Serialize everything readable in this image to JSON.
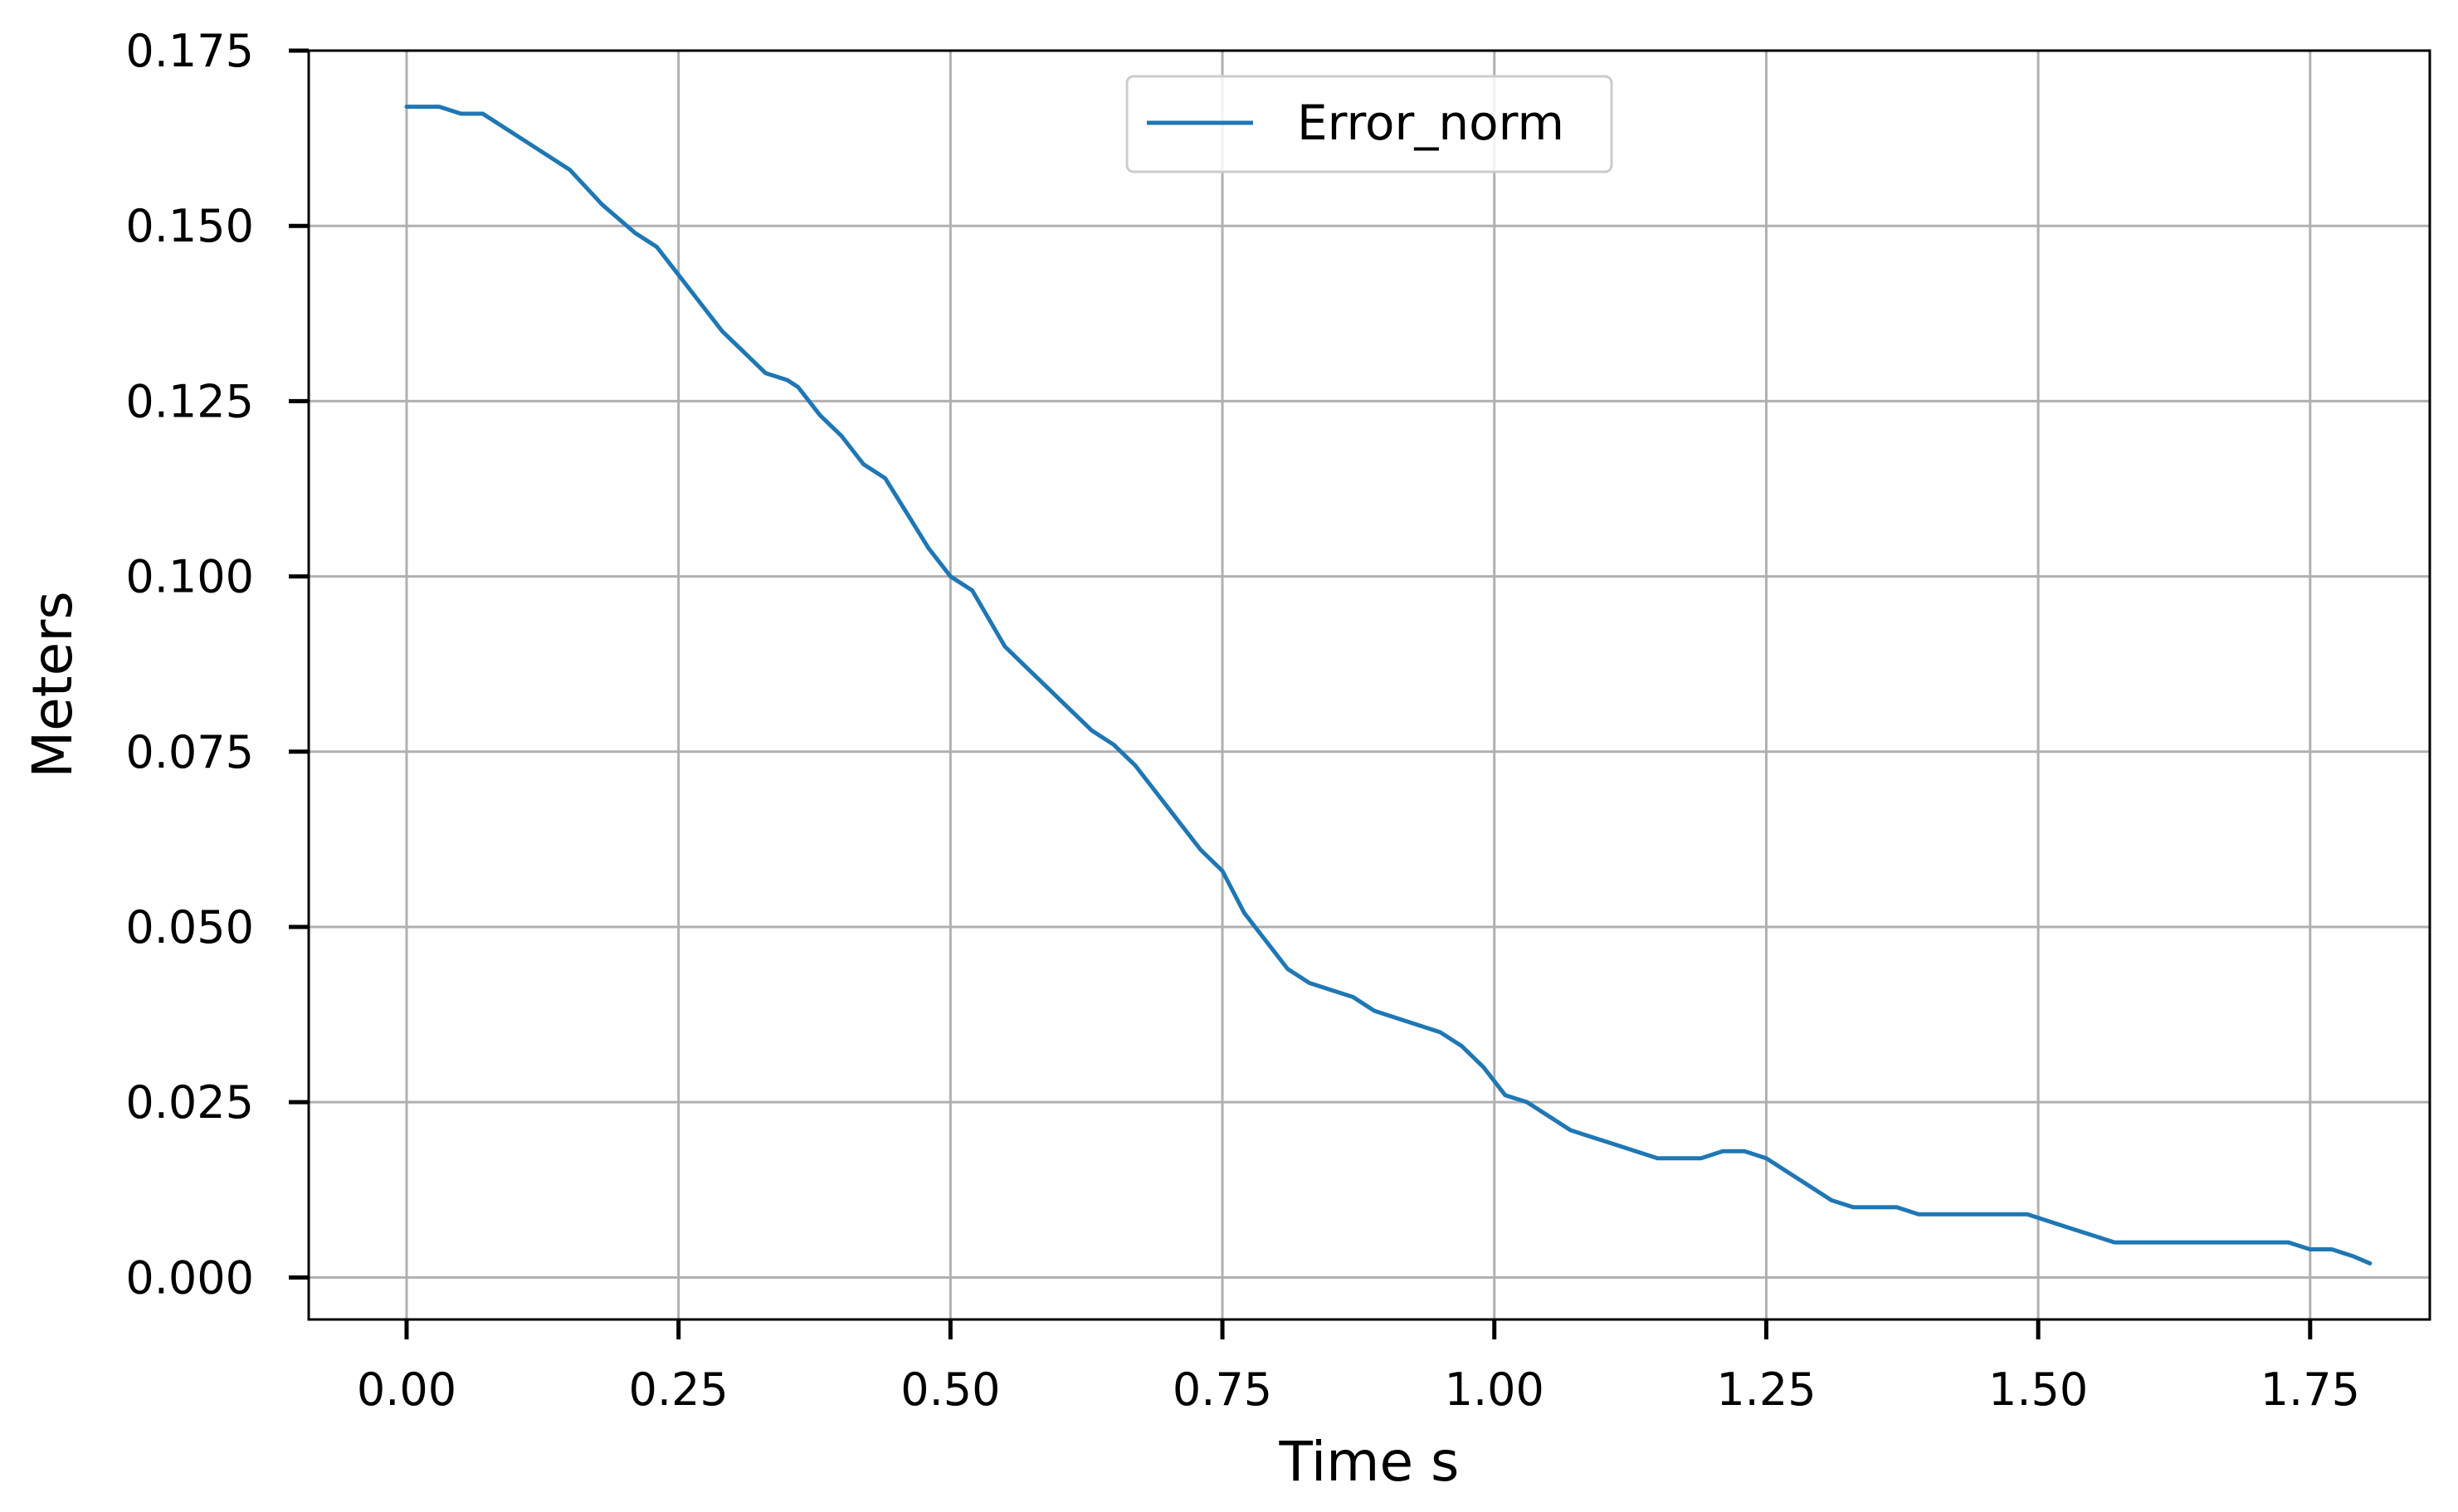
{
  "chart_data": {
    "type": "line",
    "title": "",
    "xlabel": "Time s",
    "ylabel": "Meters",
    "xlim": [
      -0.09,
      1.86
    ],
    "ylim": [
      -0.006,
      0.175
    ],
    "grid": true,
    "legend_position": "top-center",
    "x_ticks": [
      0.0,
      0.25,
      0.5,
      0.75,
      1.0,
      1.25,
      1.5,
      1.75
    ],
    "x_tick_labels": [
      "0.00",
      "0.25",
      "0.50",
      "0.75",
      "1.00",
      "1.25",
      "1.50",
      "1.75"
    ],
    "y_ticks": [
      0.0,
      0.025,
      0.05,
      0.075,
      0.1,
      0.125,
      0.15,
      0.175
    ],
    "y_tick_labels": [
      "0.000",
      "0.025",
      "0.050",
      "0.075",
      "0.100",
      "0.125",
      "0.150",
      "0.175"
    ],
    "colors": {
      "series": "#1f77b4",
      "grid": "#b0b0b0",
      "axes": "#000000"
    },
    "series": [
      {
        "name": "Error_norm",
        "x": [
          0.0,
          0.02,
          0.03,
          0.05,
          0.07,
          0.09,
          0.11,
          0.13,
          0.15,
          0.18,
          0.21,
          0.23,
          0.25,
          0.27,
          0.29,
          0.31,
          0.33,
          0.35,
          0.36,
          0.38,
          0.4,
          0.42,
          0.44,
          0.46,
          0.48,
          0.5,
          0.52,
          0.55,
          0.57,
          0.59,
          0.61,
          0.63,
          0.65,
          0.67,
          0.69,
          0.71,
          0.73,
          0.75,
          0.77,
          0.79,
          0.81,
          0.83,
          0.85,
          0.87,
          0.89,
          0.91,
          0.93,
          0.95,
          0.97,
          0.99,
          1.01,
          1.03,
          1.05,
          1.07,
          1.09,
          1.11,
          1.13,
          1.15,
          1.17,
          1.19,
          1.21,
          1.23,
          1.25,
          1.27,
          1.29,
          1.31,
          1.33,
          1.35,
          1.37,
          1.39,
          1.41,
          1.43,
          1.45,
          1.47,
          1.49,
          1.51,
          1.53,
          1.55,
          1.57,
          1.59,
          1.61,
          1.63,
          1.65,
          1.67,
          1.69,
          1.71,
          1.73,
          1.75,
          1.77,
          1.79,
          1.805
        ],
        "y": [
          0.167,
          0.167,
          0.167,
          0.166,
          0.166,
          0.164,
          0.162,
          0.16,
          0.158,
          0.153,
          0.149,
          0.147,
          0.143,
          0.139,
          0.135,
          0.132,
          0.129,
          0.128,
          0.127,
          0.123,
          0.12,
          0.116,
          0.114,
          0.109,
          0.104,
          0.1,
          0.098,
          0.09,
          0.087,
          0.084,
          0.081,
          0.078,
          0.076,
          0.073,
          0.069,
          0.065,
          0.061,
          0.058,
          0.052,
          0.048,
          0.044,
          0.042,
          0.041,
          0.04,
          0.038,
          0.037,
          0.036,
          0.035,
          0.033,
          0.03,
          0.026,
          0.025,
          0.023,
          0.021,
          0.02,
          0.019,
          0.018,
          0.017,
          0.017,
          0.017,
          0.018,
          0.018,
          0.017,
          0.015,
          0.013,
          0.011,
          0.01,
          0.01,
          0.01,
          0.009,
          0.009,
          0.009,
          0.009,
          0.009,
          0.009,
          0.008,
          0.007,
          0.006,
          0.005,
          0.005,
          0.005,
          0.005,
          0.005,
          0.005,
          0.005,
          0.005,
          0.005,
          0.004,
          0.004,
          0.003,
          0.002
        ]
      }
    ]
  }
}
